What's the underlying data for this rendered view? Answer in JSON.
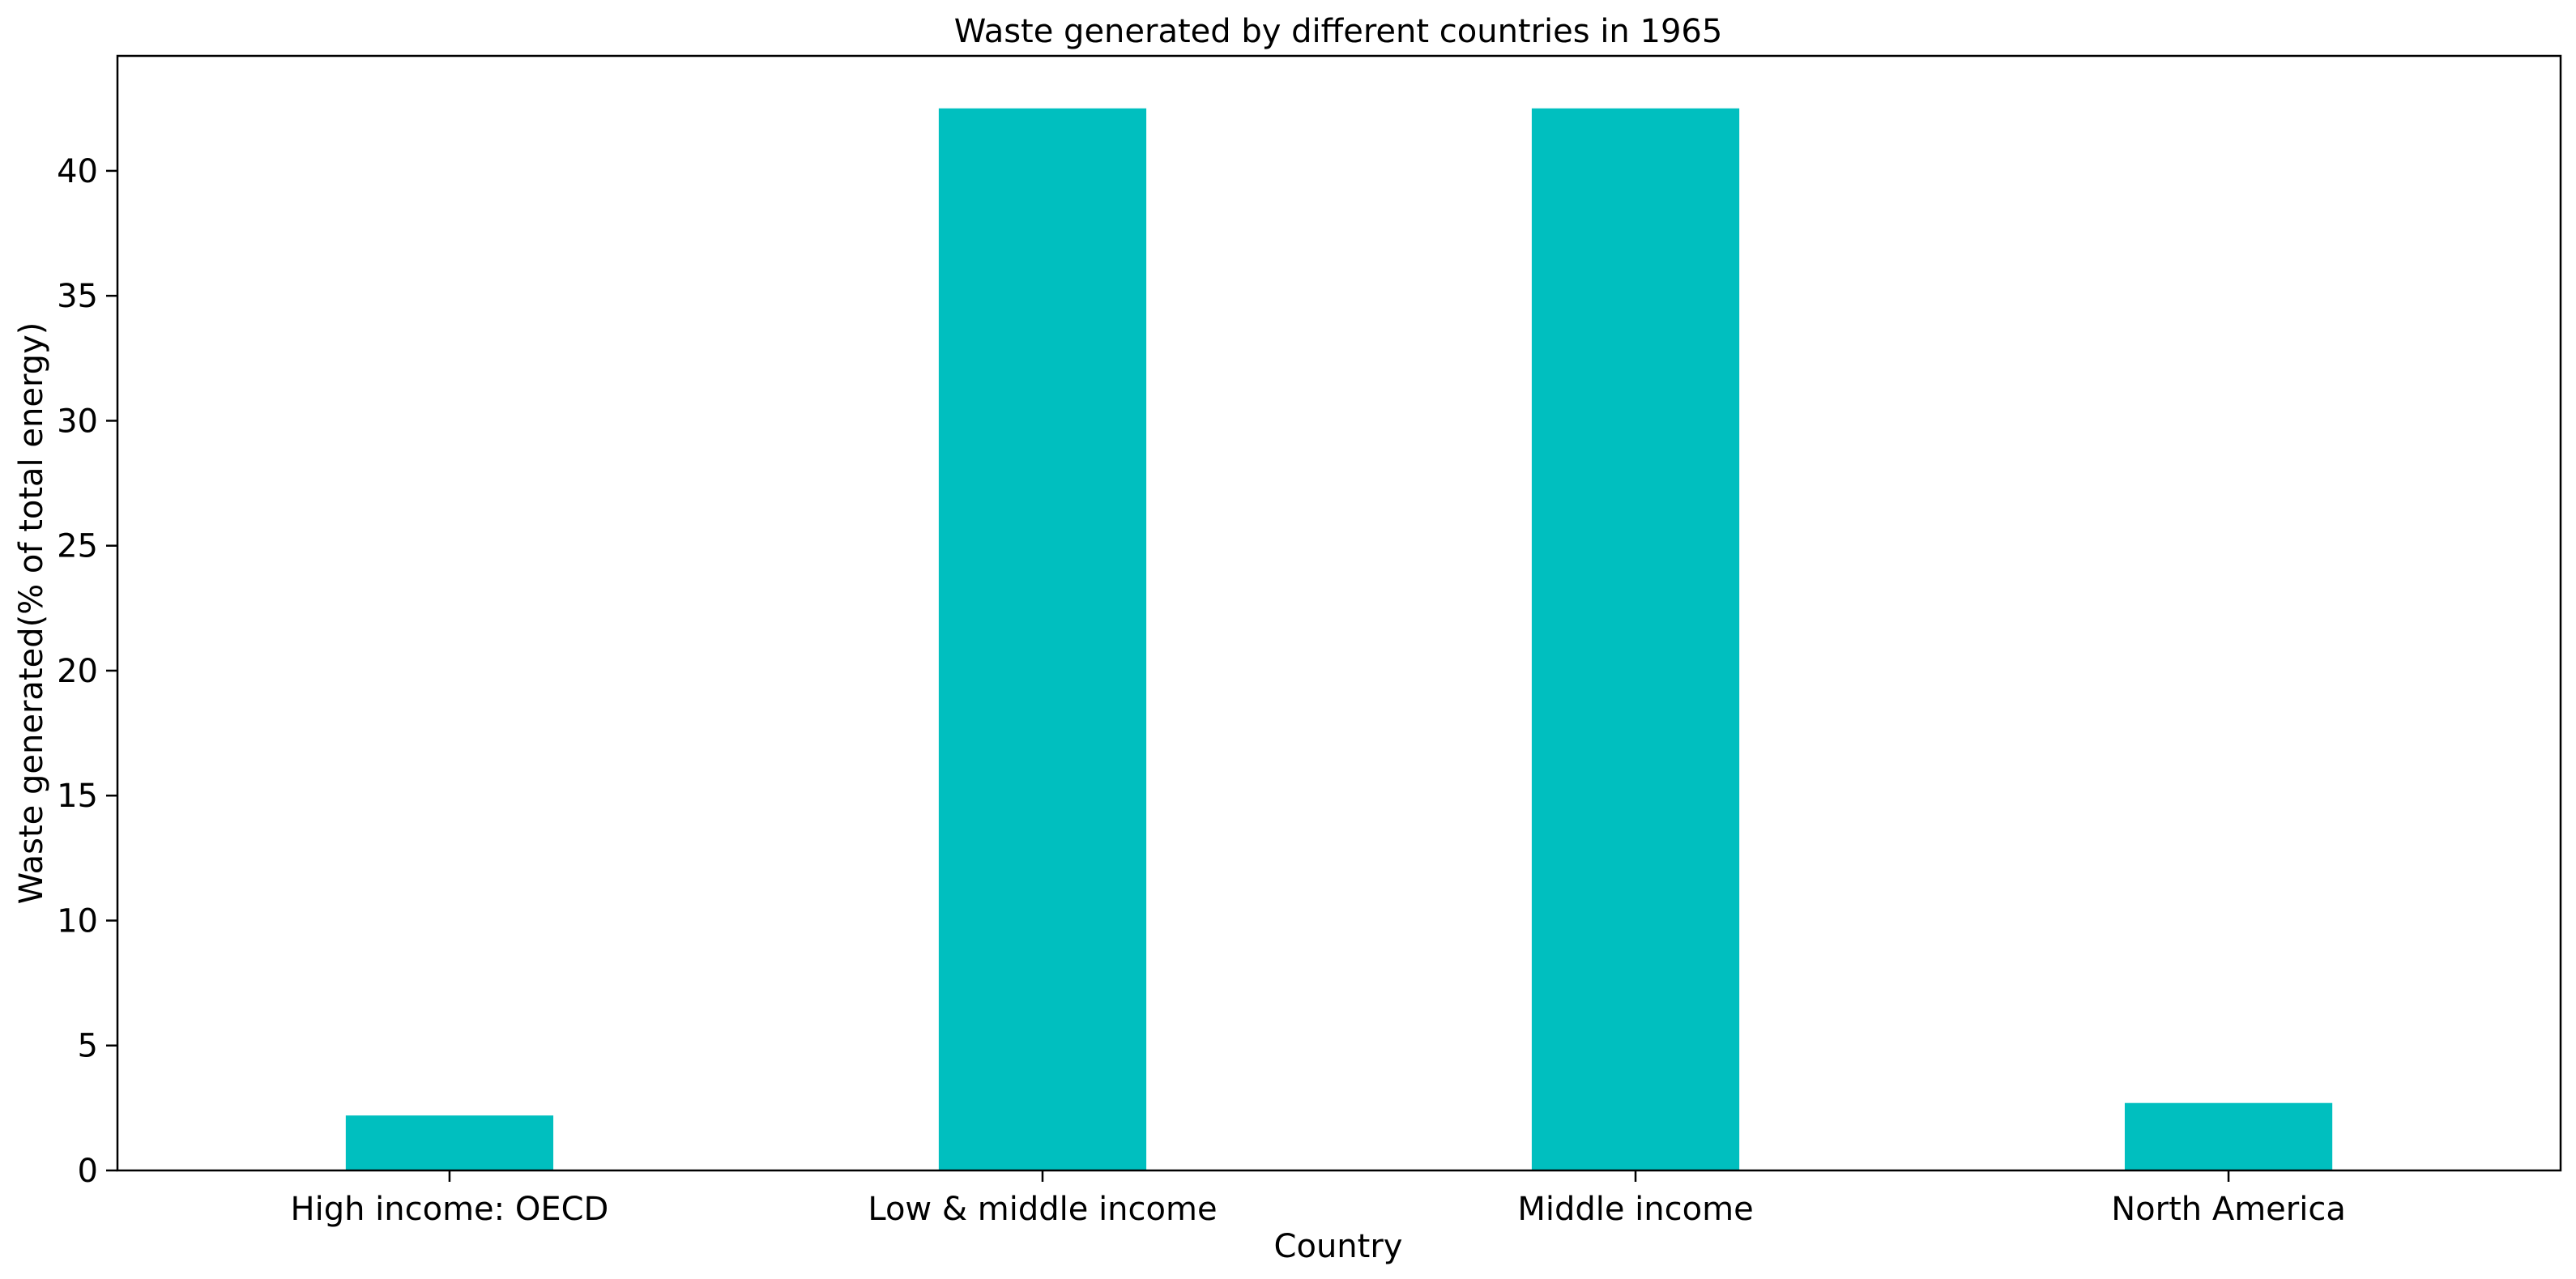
{
  "chart_data": {
    "type": "bar",
    "title": "Waste generated by different countries in 1965",
    "xlabel": "Country",
    "ylabel": "Waste generated(% of total energy)",
    "categories": [
      "High income: OECD",
      "Low & middle income",
      "Middle income",
      "North America"
    ],
    "values": [
      2.2,
      42.5,
      42.5,
      2.7
    ],
    "ylim": [
      0,
      44.6
    ],
    "yticks": [
      0,
      5,
      10,
      15,
      20,
      25,
      30,
      35,
      40
    ],
    "grid": false,
    "bar_color": "#00BFBF"
  }
}
